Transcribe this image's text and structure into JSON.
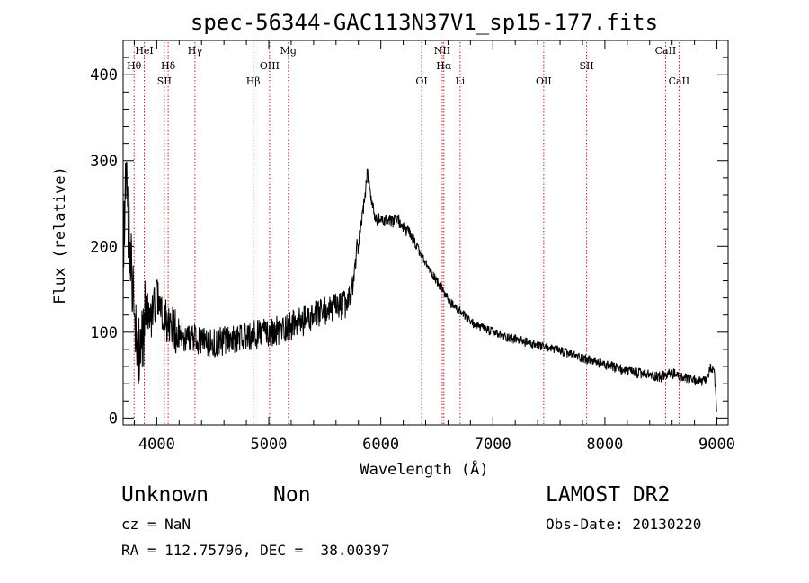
{
  "chart_data": {
    "type": "line",
    "title": "spec-56344-GAC113N37V1_sp15-177.fits",
    "xlabel": "Wavelength (Å)",
    "ylabel": "Flux (relative)",
    "xlim": [
      3700,
      9100
    ],
    "ylim": [
      -8,
      440
    ],
    "xticks": [
      4000,
      5000,
      6000,
      7000,
      8000,
      9000
    ],
    "yticks": [
      0,
      100,
      200,
      300,
      400
    ],
    "grid": false,
    "legend": "none",
    "series": [
      {
        "x": [
          3700,
          3720,
          3740,
          3760,
          3780,
          3800,
          3820,
          3850,
          3880,
          3900,
          3950,
          4000,
          4050,
          4100,
          4150,
          4200,
          4300,
          4400,
          4500,
          4600,
          4700,
          4800,
          4900,
          5000,
          5100,
          5200,
          5300,
          5400,
          5500,
          5600,
          5700,
          5750,
          5780,
          5800,
          5850,
          5880,
          5900,
          5920,
          5950,
          6000,
          6050,
          6100,
          6150,
          6200,
          6250,
          6300,
          6350,
          6400,
          6450,
          6500,
          6550,
          6600,
          6650,
          6700,
          6800,
          6900,
          7000,
          7100,
          7200,
          7300,
          7400,
          7500,
          7600,
          7700,
          7800,
          7900,
          8000,
          8100,
          8200,
          8300,
          8400,
          8500,
          8600,
          8700,
          8800,
          8900,
          8950,
          8980,
          9000
        ],
        "y": [
          160,
          300,
          230,
          210,
          150,
          120,
          90,
          80,
          95,
          130,
          115,
          140,
          120,
          110,
          105,
          95,
          92,
          90,
          88,
          90,
          92,
          95,
          98,
          100,
          103,
          108,
          112,
          118,
          125,
          128,
          132,
          150,
          190,
          205,
          250,
          285,
          270,
          250,
          232,
          230,
          230,
          228,
          232,
          222,
          215,
          205,
          192,
          180,
          170,
          160,
          150,
          138,
          130,
          125,
          112,
          105,
          100,
          95,
          92,
          88,
          84,
          82,
          78,
          74,
          70,
          66,
          62,
          58,
          55,
          52,
          50,
          48,
          52,
          46,
          44,
          42,
          60,
          48,
          5
        ]
      }
    ],
    "noise_seed": 56344,
    "spectral_lines": [
      {
        "label": "Hθ",
        "wavelength": 3798,
        "row": 1
      },
      {
        "label": "HeI",
        "wavelength": 3889,
        "row": 0
      },
      {
        "label": "SII",
        "wavelength": 4068,
        "row": 2
      },
      {
        "label": "Hδ",
        "wavelength": 4102,
        "row": 1
      },
      {
        "label": "Hγ",
        "wavelength": 4341,
        "row": 0
      },
      {
        "label": "Hβ",
        "wavelength": 4861,
        "row": 2
      },
      {
        "label": "OIII",
        "wavelength": 5007,
        "row": 1
      },
      {
        "label": "Mg",
        "wavelength": 5175,
        "row": 0
      },
      {
        "label": "OI",
        "wavelength": 6364,
        "row": 2
      },
      {
        "label": "NII",
        "wavelength": 6548,
        "row": 0
      },
      {
        "label": "Hα",
        "wavelength": 6563,
        "row": 1
      },
      {
        "label": "Li",
        "wavelength": 6708,
        "row": 2
      },
      {
        "label": "OII",
        "wavelength": 7454,
        "row": 2
      },
      {
        "label": "SII",
        "wavelength": 7837,
        "row": 1
      },
      {
        "label": "CaII",
        "wavelength": 8542,
        "row": 0
      },
      {
        "label": "CaII",
        "wavelength": 8662,
        "row": 2
      }
    ],
    "line_marker_color": "#b22222"
  },
  "info": {
    "obj_class": "Unknown",
    "obj_subclass": "Non",
    "survey": "LAMOST DR2",
    "cz": "cz = NaN",
    "obs_date": "Obs-Date: 20130220",
    "ra_dec": "RA = 112.75796, DEC =  38.00397"
  }
}
